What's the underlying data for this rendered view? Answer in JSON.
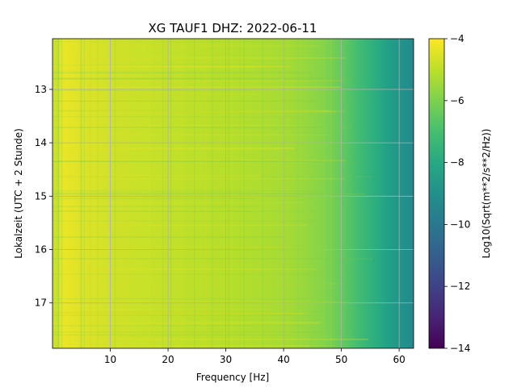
{
  "chart_data": {
    "type": "heatmap",
    "title": "XG TAUF1  DHZ: 2022-06-11",
    "xlabel": "Frequency [Hz]",
    "ylabel": "Lokalzeit (UTC + 2 Stunde)",
    "xlim": [
      0,
      62.5
    ],
    "ylim": [
      17.85,
      12.05
    ],
    "y_inverted": true,
    "xticks": [
      10,
      20,
      30,
      40,
      50,
      60
    ],
    "xtick_labels": [
      "10",
      "20",
      "30",
      "40",
      "50",
      "60"
    ],
    "yticks": [
      13,
      14,
      15,
      16,
      17
    ],
    "ytick_labels": [
      "13",
      "14",
      "15",
      "16",
      "17"
    ],
    "grid": true,
    "colormap": "viridis",
    "colorbar": {
      "label": "Log10(Sqrt(m**2/s**2/Hz))",
      "vmin": -14,
      "vmax": -4,
      "ticks": [
        -4,
        -6,
        -8,
        -10,
        -12,
        -14
      ],
      "tick_labels": [
        "−4",
        "−6",
        "−8",
        "−10",
        "−12",
        "−14"
      ]
    },
    "spectral_profile": {
      "frequency_hz": [
        0,
        2,
        5,
        10,
        15,
        20,
        25,
        30,
        35,
        40,
        44,
        47,
        50,
        53,
        56,
        58,
        60,
        62.5
      ],
      "log10_psd": [
        -4.9,
        -4.3,
        -4.5,
        -4.7,
        -4.8,
        -4.9,
        -5.0,
        -5.1,
        -5.2,
        -5.35,
        -5.6,
        -5.9,
        -6.4,
        -7.1,
        -7.8,
        -8.3,
        -8.8,
        -9.3
      ]
    }
  }
}
